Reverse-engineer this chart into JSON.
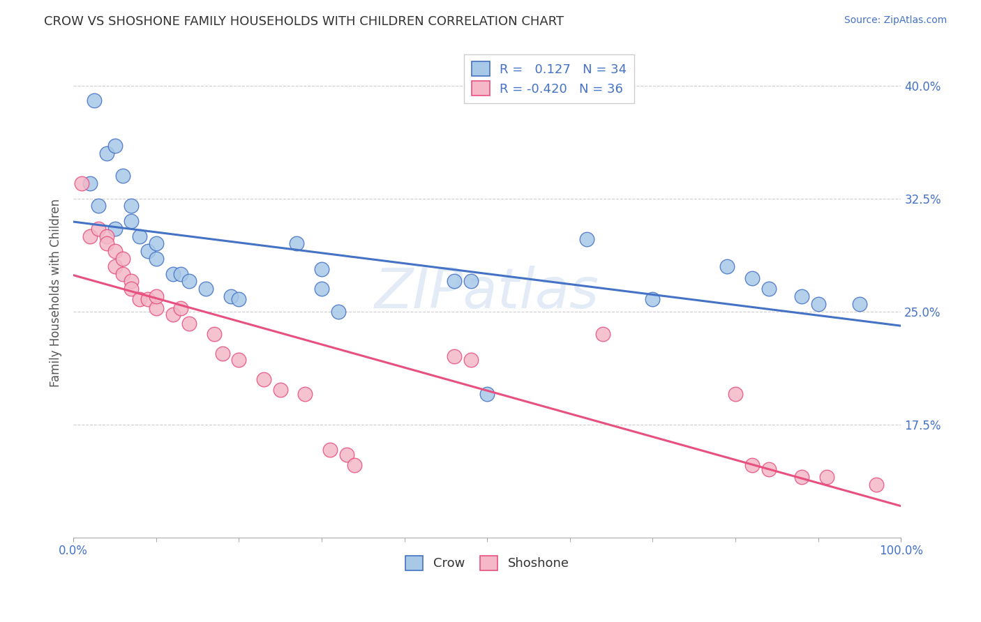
{
  "title": "CROW VS SHOSHONE FAMILY HOUSEHOLDS WITH CHILDREN CORRELATION CHART",
  "source": "Source: ZipAtlas.com",
  "ylabel": "Family Households with Children",
  "watermark": "ZIPatlas",
  "crow_R": 0.127,
  "crow_N": 34,
  "shoshone_R": -0.42,
  "shoshone_N": 36,
  "xmin": 0.0,
  "xmax": 1.0,
  "ymin": 0.1,
  "ymax": 0.425,
  "yticks": [
    0.175,
    0.25,
    0.325,
    0.4
  ],
  "ytick_labels": [
    "17.5%",
    "25.0%",
    "32.5%",
    "40.0%"
  ],
  "xtick_labels": [
    "0.0%",
    "100.0%"
  ],
  "crow_fill": "#a8c8e8",
  "shoshone_fill": "#f4b8c8",
  "crow_edge": "#4472c4",
  "shoshone_edge": "#e85080",
  "crow_line": "#4472c4",
  "shoshone_line": "#e85080",
  "grid_color": "#cccccc",
  "tick_color": "#4472c4",
  "label_color": "#555555",
  "crow_scatter": [
    [
      0.025,
      0.39
    ],
    [
      0.04,
      0.355
    ],
    [
      0.05,
      0.36
    ],
    [
      0.06,
      0.34
    ],
    [
      0.02,
      0.335
    ],
    [
      0.03,
      0.32
    ],
    [
      0.05,
      0.305
    ],
    [
      0.07,
      0.32
    ],
    [
      0.07,
      0.31
    ],
    [
      0.08,
      0.3
    ],
    [
      0.09,
      0.29
    ],
    [
      0.1,
      0.295
    ],
    [
      0.1,
      0.285
    ],
    [
      0.12,
      0.275
    ],
    [
      0.13,
      0.275
    ],
    [
      0.14,
      0.27
    ],
    [
      0.16,
      0.265
    ],
    [
      0.19,
      0.26
    ],
    [
      0.2,
      0.258
    ],
    [
      0.27,
      0.295
    ],
    [
      0.3,
      0.278
    ],
    [
      0.3,
      0.265
    ],
    [
      0.32,
      0.25
    ],
    [
      0.46,
      0.27
    ],
    [
      0.48,
      0.27
    ],
    [
      0.5,
      0.195
    ],
    [
      0.62,
      0.298
    ],
    [
      0.7,
      0.258
    ],
    [
      0.79,
      0.28
    ],
    [
      0.82,
      0.272
    ],
    [
      0.84,
      0.265
    ],
    [
      0.88,
      0.26
    ],
    [
      0.9,
      0.255
    ],
    [
      0.95,
      0.255
    ]
  ],
  "shoshone_scatter": [
    [
      0.01,
      0.335
    ],
    [
      0.02,
      0.3
    ],
    [
      0.03,
      0.305
    ],
    [
      0.04,
      0.3
    ],
    [
      0.04,
      0.295
    ],
    [
      0.05,
      0.29
    ],
    [
      0.05,
      0.28
    ],
    [
      0.06,
      0.285
    ],
    [
      0.06,
      0.275
    ],
    [
      0.07,
      0.27
    ],
    [
      0.07,
      0.265
    ],
    [
      0.08,
      0.258
    ],
    [
      0.09,
      0.258
    ],
    [
      0.1,
      0.252
    ],
    [
      0.1,
      0.26
    ],
    [
      0.12,
      0.248
    ],
    [
      0.13,
      0.252
    ],
    [
      0.14,
      0.242
    ],
    [
      0.17,
      0.235
    ],
    [
      0.18,
      0.222
    ],
    [
      0.2,
      0.218
    ],
    [
      0.23,
      0.205
    ],
    [
      0.25,
      0.198
    ],
    [
      0.28,
      0.195
    ],
    [
      0.31,
      0.158
    ],
    [
      0.33,
      0.155
    ],
    [
      0.34,
      0.148
    ],
    [
      0.46,
      0.22
    ],
    [
      0.48,
      0.218
    ],
    [
      0.64,
      0.235
    ],
    [
      0.8,
      0.195
    ],
    [
      0.82,
      0.148
    ],
    [
      0.84,
      0.145
    ],
    [
      0.88,
      0.14
    ],
    [
      0.91,
      0.14
    ],
    [
      0.97,
      0.135
    ]
  ]
}
